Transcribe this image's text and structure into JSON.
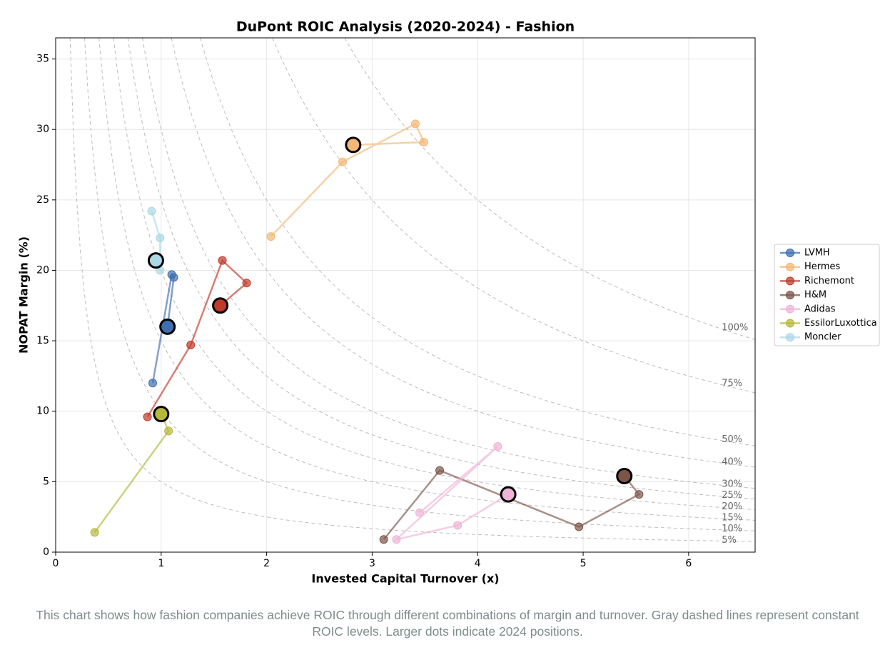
{
  "chart_data": {
    "type": "scatter-path",
    "title": "DuPont ROIC Analysis (2020-2024) - Fashion",
    "x_label": "Invested Capital Turnover (x)",
    "y_label": "NOPAT Margin (%)",
    "caption": "This chart shows how fashion companies achieve ROIC through different combinations of margin and turnover. Gray dashed lines represent constant ROIC levels. Larger dots indicate 2024 positions.",
    "xlim": [
      0,
      6.63
    ],
    "ylim": [
      0,
      36.5
    ],
    "xticks": [
      0,
      1,
      2,
      3,
      4,
      5,
      6
    ],
    "yticks": [
      0,
      5,
      10,
      15,
      20,
      25,
      30,
      35
    ],
    "grid": true,
    "highlight_last": true,
    "legend": "right",
    "iso_roic": [
      {
        "value": 5,
        "label": "5%"
      },
      {
        "value": 10,
        "label": "10%"
      },
      {
        "value": 15,
        "label": "15%"
      },
      {
        "value": 20,
        "label": "20%"
      },
      {
        "value": 25,
        "label": "25%"
      },
      {
        "value": 30,
        "label": "30%"
      },
      {
        "value": 40,
        "label": "40%"
      },
      {
        "value": 50,
        "label": "50%"
      },
      {
        "value": 75,
        "label": "75%"
      },
      {
        "value": 100,
        "label": "100%"
      }
    ],
    "series": [
      {
        "name": "LVMH",
        "color": "#3f6fb0",
        "x": [
          0.92,
          1.1,
          1.12,
          1.06
        ],
        "values": [
          12.0,
          19.7,
          19.5,
          16.0
        ]
      },
      {
        "name": "Hermes",
        "color": "#f2b877",
        "x": [
          2.04,
          2.72,
          3.41,
          3.49,
          2.82
        ],
        "values": [
          22.4,
          27.7,
          30.4,
          29.1,
          28.9
        ]
      },
      {
        "name": "Richemont",
        "color": "#c0392b",
        "x": [
          0.87,
          1.28,
          1.58,
          1.81,
          1.56
        ],
        "values": [
          9.6,
          14.7,
          20.7,
          19.1,
          17.5
        ]
      },
      {
        "name": "H&M",
        "color": "#7d5548",
        "x": [
          3.11,
          3.64,
          4.96,
          5.53,
          5.39
        ],
        "values": [
          0.9,
          5.8,
          1.8,
          4.1,
          5.4
        ]
      },
      {
        "name": "Adidas",
        "color": "#eeb3d6",
        "x": [
          3.45,
          4.19,
          3.23,
          3.81,
          4.29
        ],
        "values": [
          2.8,
          7.5,
          0.9,
          1.9,
          4.1
        ]
      },
      {
        "name": "EssilorLuxottica",
        "color": "#b6b83a",
        "x": [
          0.37,
          1.07,
          1.0
        ],
        "values": [
          1.4,
          8.6,
          9.8
        ]
      },
      {
        "name": "Moncler",
        "color": "#add8e6",
        "x": [
          0.91,
          0.99,
          0.99,
          0.95
        ],
        "values": [
          24.2,
          22.3,
          20.0,
          20.7
        ]
      }
    ]
  }
}
